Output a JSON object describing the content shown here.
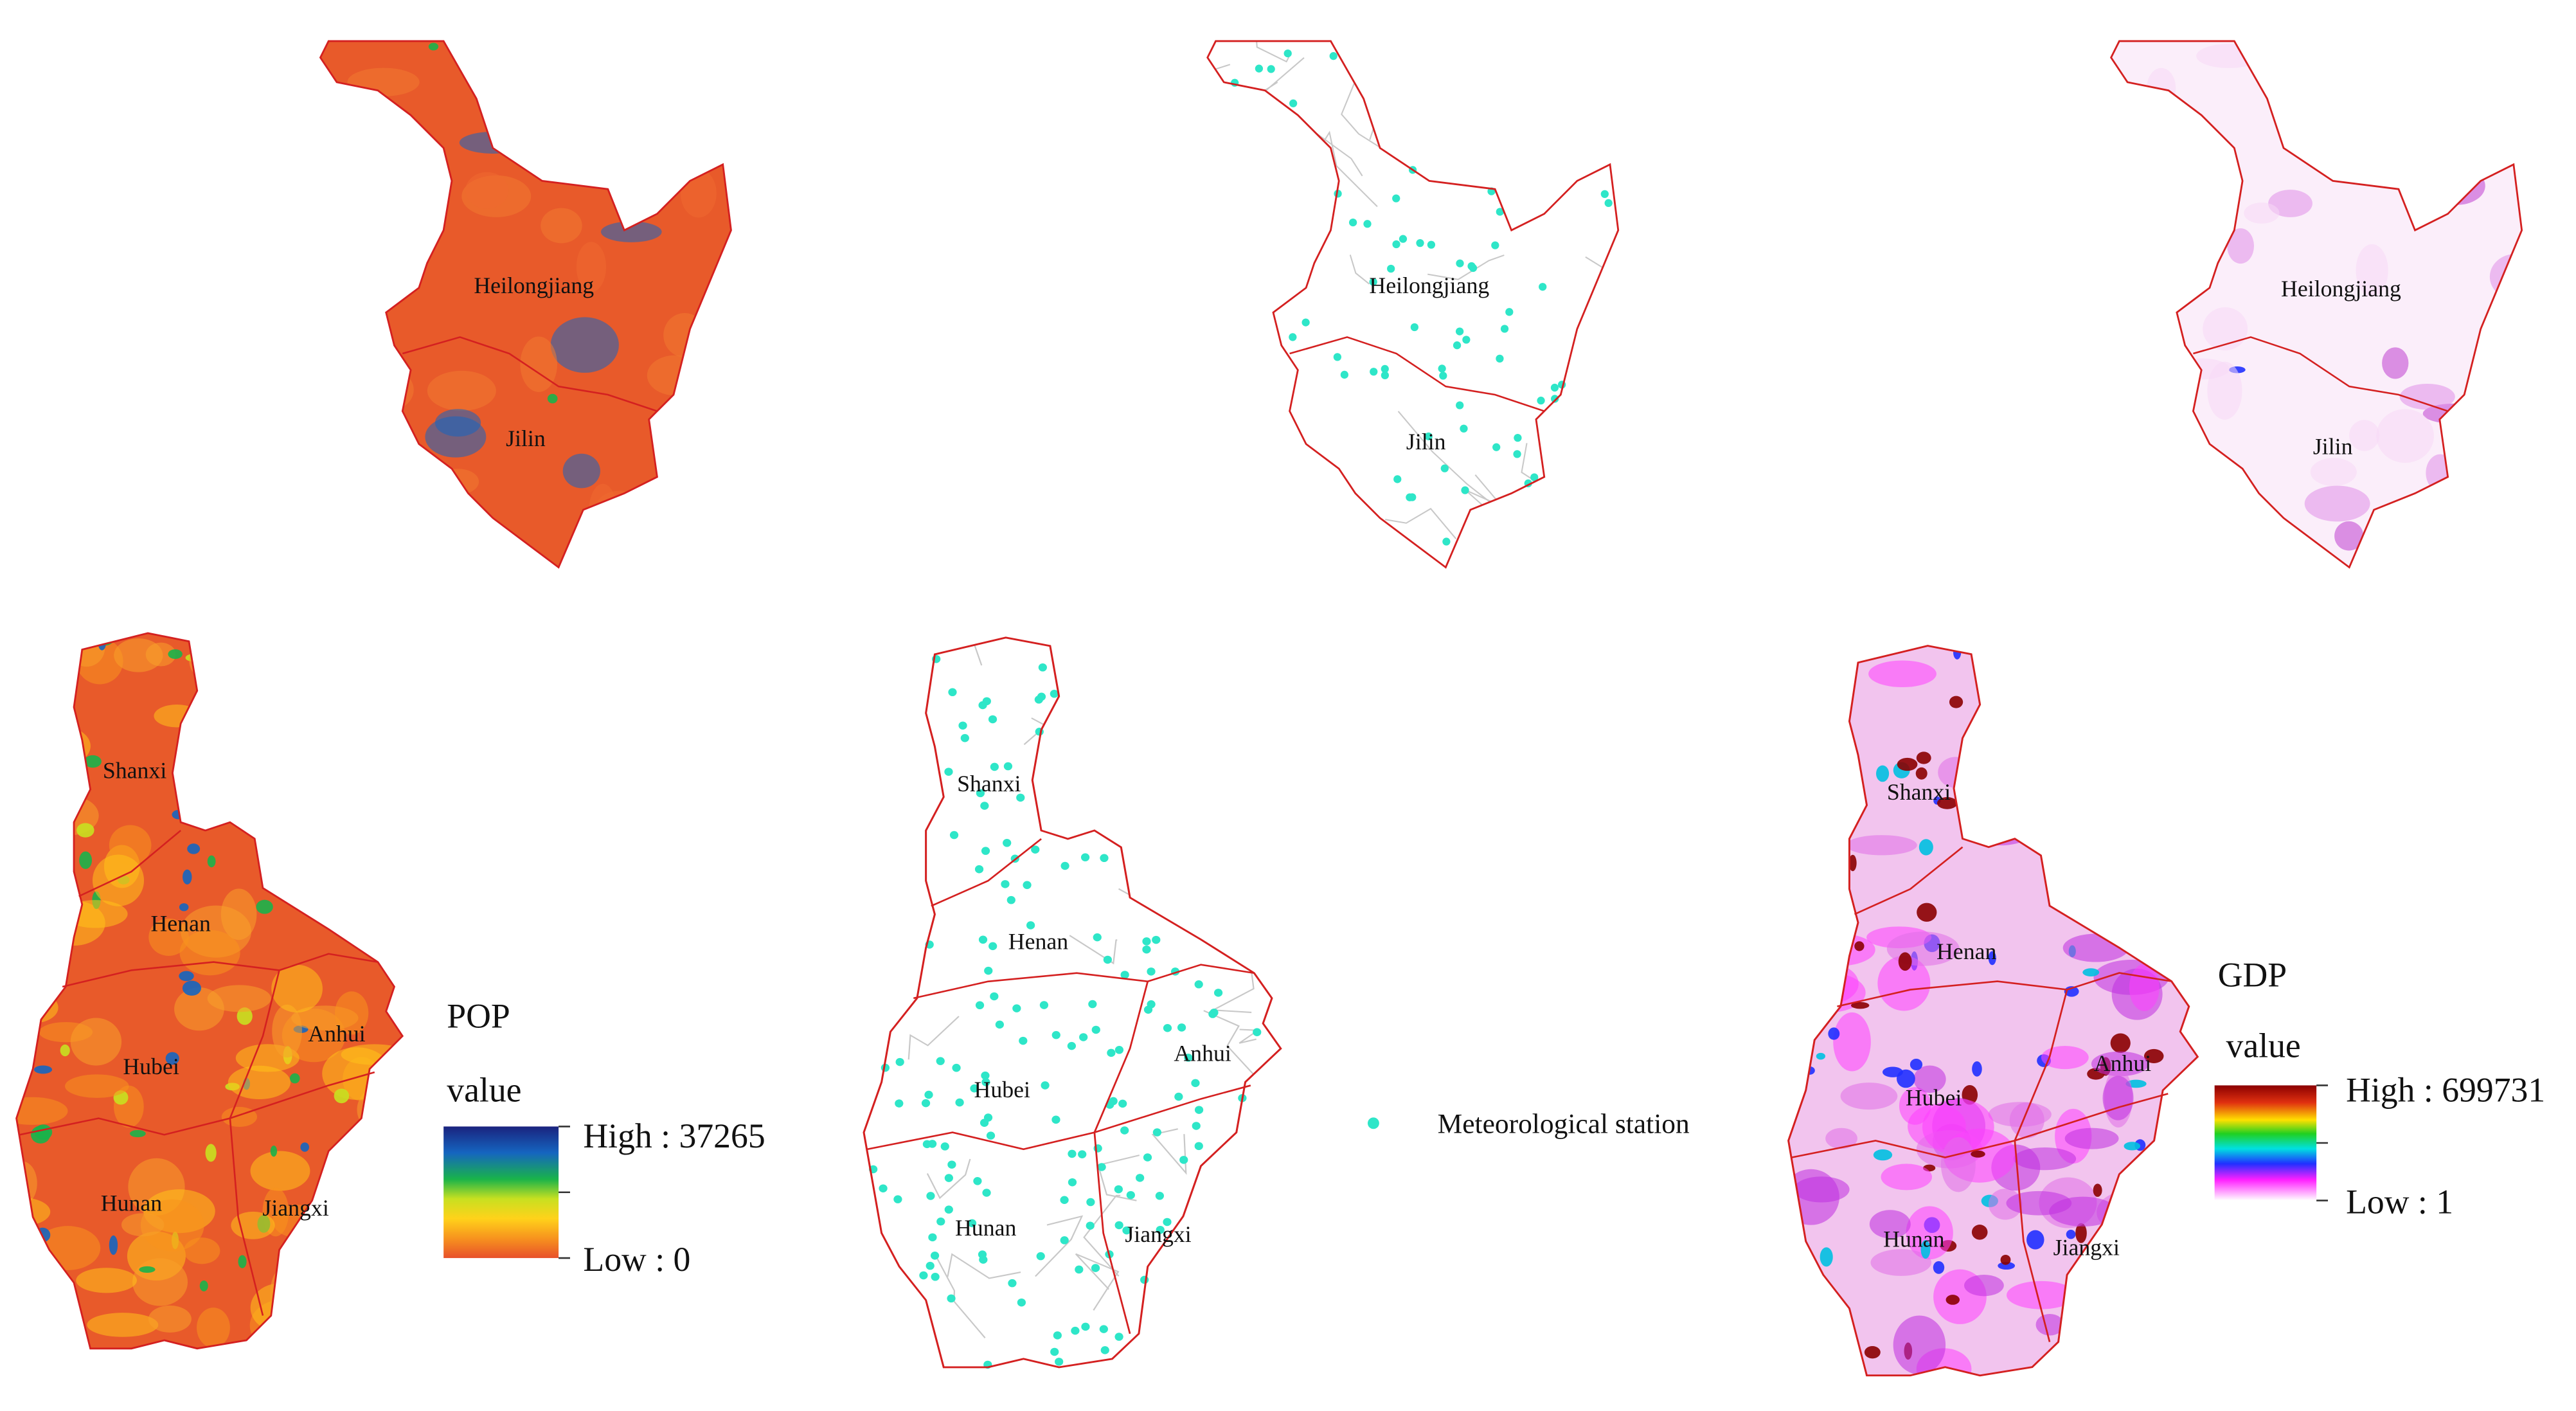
{
  "panels": [
    {
      "regions": [
        "Heilongjiang",
        "Jilin"
      ]
    },
    {
      "regions": [
        "Heilongjiang",
        "Jilin"
      ]
    },
    {
      "regions": [
        "Heilongjiang",
        "Jilin"
      ]
    },
    {
      "regions": [
        "Shanxi",
        "Henan",
        "Hubei",
        "Anhui",
        "Hunan",
        "Jiangxi"
      ]
    },
    {
      "regions": [
        "Shanxi",
        "Henan",
        "Hubei",
        "Anhui",
        "Hunan",
        "Jiangxi"
      ]
    },
    {
      "regions": [
        "Shanxi",
        "Henan",
        "Hubei",
        "Anhui",
        "Hunan",
        "Jiangxi"
      ]
    }
  ],
  "legends": {
    "pop": {
      "title": "POP",
      "subtitle": "value",
      "high": "High : 37265",
      "low": "Low : 0"
    },
    "station": {
      "label": "Meteorological station"
    },
    "gdp": {
      "title": "GDP",
      "subtitle": "value",
      "high": "High : 699731",
      "low": "Low : 1"
    }
  }
}
